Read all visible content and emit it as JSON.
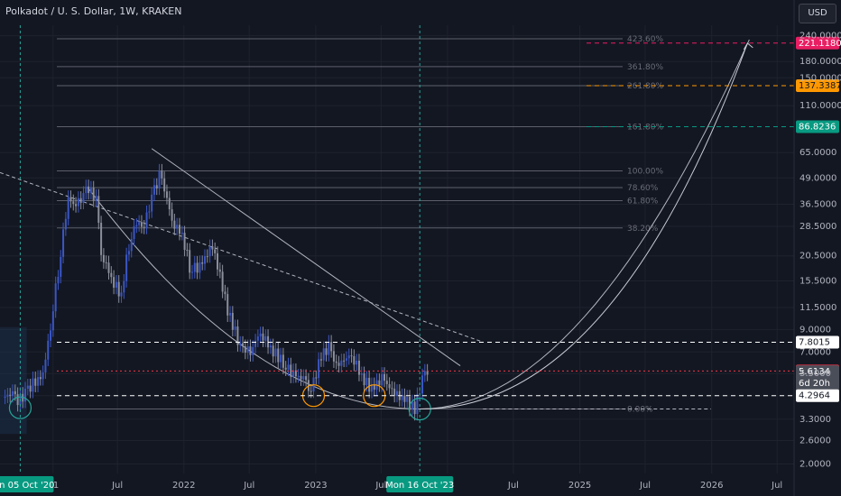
{
  "header": {
    "title": "Polkadot / U. S. Dollar, 1W, KRAKEN",
    "currency": "USD"
  },
  "colors": {
    "bg": "#131722",
    "grid": "#1e222d",
    "bull": "#3b56c4",
    "bear": "#8b8f9c",
    "fib_line": "#5d606b",
    "red": "#f23645",
    "orange": "#ff9800",
    "green": "#089981",
    "teal": "#26a69a"
  },
  "chart_data": {
    "type": "candlestick",
    "title": "Polkadot / U. S. Dollar, 1W, KRAKEN",
    "y_scale": "log",
    "ylim": [
      1.8,
      270
    ],
    "xlim": [
      "2020-08-10",
      "2026-08-17"
    ],
    "y_ticks": [
      "240.0000",
      "180.0000",
      "150.0000",
      "110.0000",
      "65.0000",
      "49.0000",
      "36.5000",
      "28.5000",
      "20.5000",
      "15.5000",
      "11.5000",
      "9.0000",
      "7.0000",
      "5.5000",
      "4.2964",
      "3.3000",
      "2.6000",
      "2.0000"
    ],
    "x_ticks": [
      {
        "date": "2021-01-04",
        "label": "21"
      },
      {
        "date": "2021-07-01",
        "label": "Jul"
      },
      {
        "date": "2022-01-01",
        "label": "2022"
      },
      {
        "date": "2022-07-01",
        "label": "Jul"
      },
      {
        "date": "2023-01-01",
        "label": "2023"
      },
      {
        "date": "2023-07-01",
        "label": "Jul"
      },
      {
        "date": "2024-01-01",
        "label": "4"
      },
      {
        "date": "2024-07-01",
        "label": "Jul"
      },
      {
        "date": "2025-01-01",
        "label": "2025"
      },
      {
        "date": "2025-07-01",
        "label": "Jul"
      },
      {
        "date": "2026-01-01",
        "label": "2026"
      },
      {
        "date": "2026-07-01",
        "label": "Jul"
      }
    ],
    "close_series": [
      {
        "date": "2020-08-24",
        "close": 4.2
      },
      {
        "date": "2020-09-21",
        "close": 4.4
      },
      {
        "date": "2020-10-05",
        "close": 4.0
      },
      {
        "date": "2020-10-26",
        "close": 4.4
      },
      {
        "date": "2020-11-23",
        "close": 5.1
      },
      {
        "date": "2020-12-14",
        "close": 5.4
      },
      {
        "date": "2021-01-04",
        "close": 9.0
      },
      {
        "date": "2021-01-25",
        "close": 17.0
      },
      {
        "date": "2021-02-08",
        "close": 26.0
      },
      {
        "date": "2021-02-22",
        "close": 38.0
      },
      {
        "date": "2021-03-15",
        "close": 36.0
      },
      {
        "date": "2021-04-05",
        "close": 40.0
      },
      {
        "date": "2021-04-19",
        "close": 44.0
      },
      {
        "date": "2021-05-10",
        "close": 38.0
      },
      {
        "date": "2021-05-24",
        "close": 21.0
      },
      {
        "date": "2021-06-21",
        "close": 16.0
      },
      {
        "date": "2021-07-19",
        "close": 13.0
      },
      {
        "date": "2021-08-09",
        "close": 23.0
      },
      {
        "date": "2021-08-30",
        "close": 30.0
      },
      {
        "date": "2021-09-20",
        "close": 28.0
      },
      {
        "date": "2021-10-11",
        "close": 39.0
      },
      {
        "date": "2021-11-01",
        "close": 50.0
      },
      {
        "date": "2021-11-15",
        "close": 44.0
      },
      {
        "date": "2021-12-06",
        "close": 30.0
      },
      {
        "date": "2022-01-03",
        "close": 26.0
      },
      {
        "date": "2022-01-24",
        "close": 18.0
      },
      {
        "date": "2022-02-21",
        "close": 18.0
      },
      {
        "date": "2022-03-28",
        "close": 23.0
      },
      {
        "date": "2022-04-11",
        "close": 18.0
      },
      {
        "date": "2022-05-09",
        "close": 11.0
      },
      {
        "date": "2022-06-13",
        "close": 7.3
      },
      {
        "date": "2022-07-11",
        "close": 7.1
      },
      {
        "date": "2022-08-08",
        "close": 8.7
      },
      {
        "date": "2022-09-05",
        "close": 7.3
      },
      {
        "date": "2022-10-10",
        "close": 6.2
      },
      {
        "date": "2022-11-07",
        "close": 5.4
      },
      {
        "date": "2022-12-05",
        "close": 5.2
      },
      {
        "date": "2022-12-26",
        "close": 4.4
      },
      {
        "date": "2023-01-23",
        "close": 6.7
      },
      {
        "date": "2023-02-13",
        "close": 7.4
      },
      {
        "date": "2023-03-06",
        "close": 6.0
      },
      {
        "date": "2023-04-17",
        "close": 6.8
      },
      {
        "date": "2023-05-15",
        "close": 5.3
      },
      {
        "date": "2023-06-12",
        "close": 4.6
      },
      {
        "date": "2023-07-10",
        "close": 5.2
      },
      {
        "date": "2023-08-14",
        "close": 4.4
      },
      {
        "date": "2023-09-11",
        "close": 4.1
      },
      {
        "date": "2023-10-09",
        "close": 3.7
      },
      {
        "date": "2023-10-30",
        "close": 5.1
      },
      {
        "date": "2023-11-06",
        "close": 5.61
      }
    ],
    "fib_levels": [
      {
        "label": "423.60%",
        "price": 232
      },
      {
        "label": "361.80%",
        "price": 170
      },
      {
        "label": "261.80%",
        "price": 137.3387
      },
      {
        "label": "161.80%",
        "price": 86.8236
      },
      {
        "label": "100.00%",
        "price": 53
      },
      {
        "label": "78.60%",
        "price": 44
      },
      {
        "label": "61.80%",
        "price": 38
      },
      {
        "label": "38.20%",
        "price": 28
      },
      {
        "label": "0.00%",
        "price": 3.7
      }
    ],
    "price_labels": [
      {
        "value": "221.1180",
        "price": 221.118,
        "color": "#e91e63",
        "line": "dashed"
      },
      {
        "value": "137.3387",
        "price": 137.3387,
        "color": "#ff9800",
        "line": "dashed"
      },
      {
        "value": "86.8236",
        "price": 86.8236,
        "color": "#089981",
        "line": "dashed"
      },
      {
        "value": "7.8015",
        "price": 7.8015,
        "color": "#ffffff",
        "line": "dashed"
      },
      {
        "value": "5.6587",
        "price": 5.6587,
        "color": "#f23645",
        "line": "dotted"
      },
      {
        "value": "5.6134",
        "price": 5.6134,
        "color": "#4a4e59",
        "line": "none",
        "countdown": "6d 20h"
      },
      {
        "value": "4.2964",
        "price": 4.2964,
        "color": "#ffffff",
        "line": "dashed"
      }
    ],
    "date_labels": [
      {
        "date": "2020-10-05",
        "label": "Mon 05 Oct '20"
      },
      {
        "date": "2023-10-16",
        "label": "Mon 16 Oct '23"
      }
    ],
    "circles": [
      {
        "date": "2020-10-05",
        "price": 3.75,
        "color": "#26a69a"
      },
      {
        "date": "2022-12-26",
        "price": 4.2964,
        "color": "#ff9800"
      },
      {
        "date": "2023-06-12",
        "price": 4.2964,
        "color": "#ff9800"
      },
      {
        "date": "2023-10-16",
        "price": 3.7,
        "color": "#26a69a"
      }
    ],
    "trendlines": [
      {
        "from": {
          "date": "2020-08-10",
          "price": 52
        },
        "to": {
          "date": "2024-04-01",
          "price": 7.9
        },
        "style": "dashed"
      },
      {
        "from": {
          "date": "2021-10-04",
          "price": 68
        },
        "to": {
          "date": "2024-02-05",
          "price": 6.0
        },
        "style": "solid"
      },
      {
        "from": {
          "date": "2024-04-08",
          "price": 3.7
        },
        "to": {
          "date": "2025-12-30",
          "price": 3.7
        },
        "style": "dashed"
      }
    ]
  }
}
